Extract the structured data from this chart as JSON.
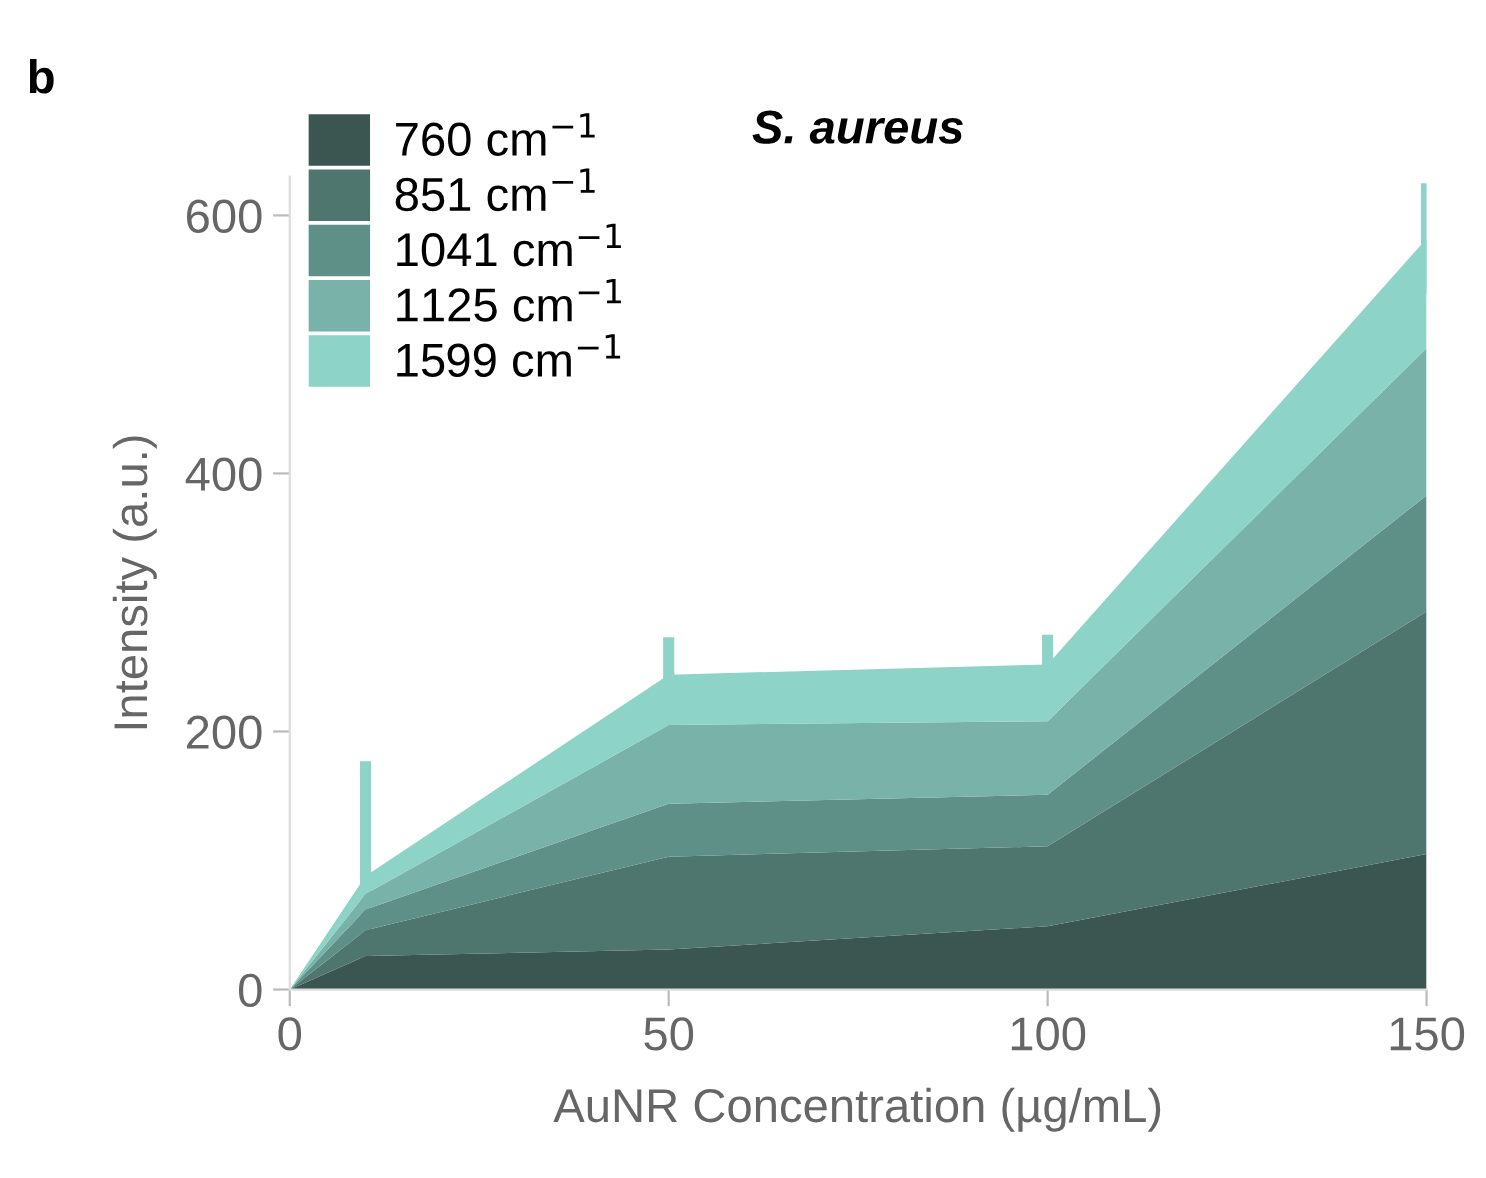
{
  "chart_data": {
    "type": "area",
    "stacked": true,
    "title": "S. aureus",
    "xlabel": "AuNR Concentration (µg/mL)",
    "ylabel": "Intensity (a.u.)",
    "annotations": [
      "b"
    ],
    "x": [
      0,
      10,
      50,
      100,
      150
    ],
    "series": [
      {
        "name": "760 cm$^{−1}$",
        "color": "#3b5550",
        "values": [
          0,
          26,
          31,
          49,
          105
        ]
      },
      {
        "name": "851 cm$^{−1}$",
        "color": "#4e756e",
        "values": [
          0,
          20,
          72,
          62,
          188
        ]
      },
      {
        "name": "1041 cm$^{−1}$",
        "color": "#5e9088",
        "values": [
          0,
          16,
          41,
          40,
          90
        ]
      },
      {
        "name": "1125 cm$^{−1}$",
        "color": "#78b2a8",
        "values": [
          0,
          12,
          61,
          57,
          114
        ]
      },
      {
        "name": "1599 cm$^{−1}$",
        "color": "#8dd3c7",
        "values": [
          0,
          14,
          39,
          44,
          85
        ],
        "errors": [
          null,
          89,
          29,
          23,
          43
        ]
      }
    ],
    "xlim": [
      0,
      150
    ],
    "ylim": [
      0,
      630
    ],
    "xticks": [
      0,
      50,
      100,
      150
    ],
    "yticks": [
      0,
      200,
      400,
      600
    ],
    "grid": false,
    "legend": "top left"
  }
}
